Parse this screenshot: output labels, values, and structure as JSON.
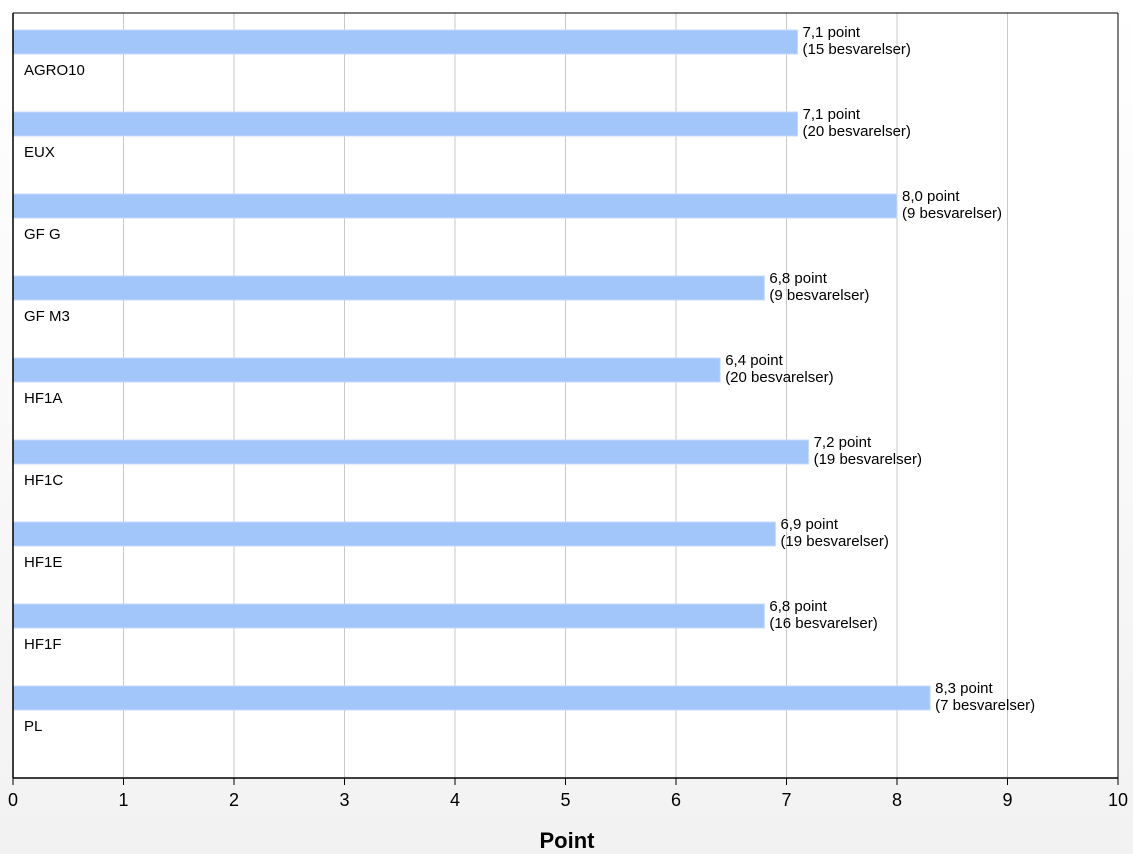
{
  "chart_data": {
    "type": "bar",
    "orientation": "horizontal",
    "title": "",
    "xlabel": "Point",
    "ylabel": "",
    "xlim": [
      0,
      10
    ],
    "x_ticks": [
      "0",
      "1",
      "2",
      "3",
      "4",
      "5",
      "6",
      "7",
      "8",
      "9",
      "10"
    ],
    "grid": "vertical",
    "categories": [
      "AGRO10",
      "EUX",
      "GF G",
      "GF M3",
      "HF1A",
      "HF1C",
      "HF1E",
      "HF1F",
      "PL"
    ],
    "values": [
      7.1,
      7.1,
      8.0,
      6.8,
      6.4,
      7.2,
      6.9,
      6.8,
      8.3
    ],
    "responses": [
      15,
      20,
      9,
      9,
      20,
      19,
      19,
      16,
      7
    ],
    "data_labels": [
      [
        "7,1 point",
        "(15 besvarelser)"
      ],
      [
        "7,1 point",
        "(20 besvarelser)"
      ],
      [
        "8,0 point",
        "(9 besvarelser)"
      ],
      [
        "6,8 point",
        "(9 besvarelser)"
      ],
      [
        "6,4 point",
        "(20 besvarelser)"
      ],
      [
        "7,2 point",
        "(19 besvarelser)"
      ],
      [
        "6,9 point",
        "(19 besvarelser)"
      ],
      [
        "6,8 point",
        "(16 besvarelser)"
      ],
      [
        "8,3 point",
        "(7 besvarelser)"
      ]
    ],
    "colors": {
      "bar": "#a3c6fa",
      "bar_edge": "#c6dbfb",
      "grid": "#c8c8c8",
      "axis": "#000000"
    }
  }
}
